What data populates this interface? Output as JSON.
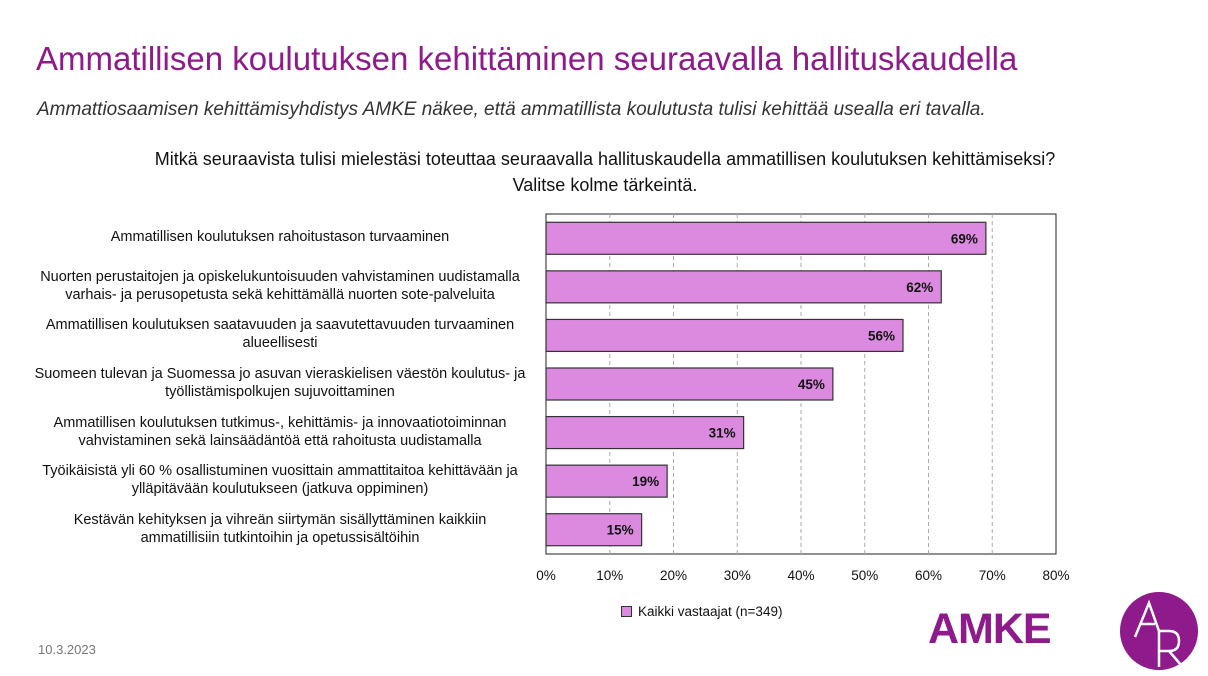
{
  "title": "Ammatillisen koulutuksen kehittäminen seuraavalla hallituskaudella",
  "subtitle": "Ammattiosaamisen kehittämisyhdistys AMKE näkee, että ammatillista koulutusta tulisi kehittää usealla eri tavalla.",
  "date": "10.3.2023",
  "logo_text": "AMKE",
  "colors": {
    "title": "#8e1a8b",
    "bar": "#dc8ae0",
    "bar_border": "#333333"
  },
  "chart_data": {
    "type": "bar",
    "orientation": "horizontal",
    "title": "Mitkä seuraavista tulisi mielestäsi toteuttaa seuraavalla hallituskaudella ammatillisen koulutuksen kehittämiseksi? Valitse kolme tärkeintä.",
    "categories": [
      "Ammatillisen koulutuksen rahoitustason turvaaminen",
      "Nuorten perustaitojen ja opiskelukuntoisuuden vahvistaminen uudistamalla varhais- ja perusopetusta sekä kehittämällä nuorten sote-palveluita",
      "Ammatillisen koulutuksen saatavuuden ja saavutettavuuden turvaaminen alueellisesti",
      "Suomeen tulevan ja Suomessa jo asuvan vieraskielisen väestön koulutus- ja työllistämispolkujen sujuvoittaminen",
      "Ammatillisen koulutuksen tutkimus-, kehittämis- ja innovaatiotoiminnan vahvistaminen sekä lainsäädäntöä että rahoitusta uudistamalla",
      "Työikäisistä yli 60 % osallistuminen vuosittain ammattitaitoa kehittävään ja ylläpitävään koulutukseen (jatkuva oppiminen)",
      "Kestävän kehityksen ja vihreän siirtymän sisällyttäminen kaikkiin ammatillisiin tutkintoihin ja opetussisältöihin"
    ],
    "category_lines": [
      [
        "Ammatillisen koulutuksen rahoitustason turvaaminen"
      ],
      [
        "Nuorten perustaitojen ja opiskelukuntoisuuden vahvistaminen uudistamalla",
        "varhais- ja perusopetusta sekä kehittämällä nuorten sote-palveluita"
      ],
      [
        "Ammatillisen koulutuksen saatavuuden ja saavutettavuuden turvaaminen",
        "alueellisesti"
      ],
      [
        "Suomeen tulevan ja Suomessa jo asuvan vieraskielisen väestön koulutus- ja",
        "työllistämispolkujen sujuvoittaminen"
      ],
      [
        "Ammatillisen koulutuksen tutkimus-, kehittämis- ja innovaatiotoiminnan",
        "vahvistaminen sekä lainsäädäntöä että rahoitusta uudistamalla"
      ],
      [
        "Työikäisistä yli 60 % osallistuminen vuosittain ammattitaitoa kehittävään ja",
        "ylläpitävään koulutukseen (jatkuva oppiminen)"
      ],
      [
        "Kestävän kehityksen ja vihreän siirtymän sisällyttäminen kaikkiin",
        "ammatillisiin tutkintoihin ja opetussisältöihin"
      ]
    ],
    "series": [
      {
        "name": "Kaikki vastaajat (n=349)",
        "values": [
          69,
          62,
          56,
          45,
          31,
          19,
          15
        ]
      }
    ],
    "data_labels": [
      "69%",
      "62%",
      "56%",
      "45%",
      "31%",
      "19%",
      "15%"
    ],
    "x_ticks": [
      "0%",
      "10%",
      "20%",
      "30%",
      "40%",
      "50%",
      "60%",
      "70%",
      "80%"
    ],
    "xlim": [
      0,
      80
    ],
    "grid": "vertical dashed",
    "legend_position": "bottom"
  }
}
